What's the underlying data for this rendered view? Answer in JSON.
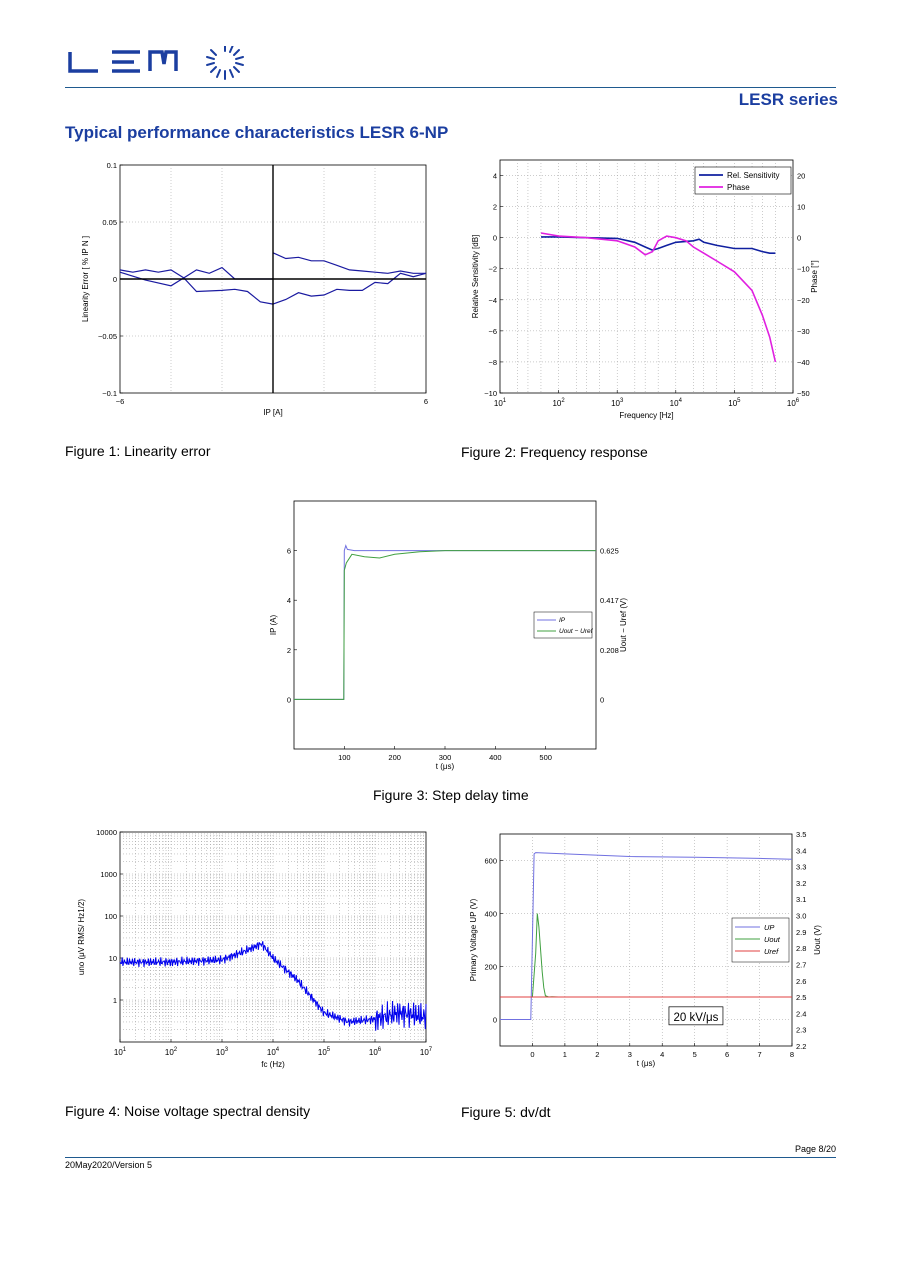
{
  "header": {
    "brand": "LEM",
    "series_title": "LESR series",
    "section_title": "Typical performance characteristics LESR 6-NP"
  },
  "colors": {
    "brand_blue": "#1b3ea0",
    "rule": "#1f5a8f"
  },
  "figures": {
    "fig1_caption": "Figure 1: Linearity error",
    "fig2_caption": "Figure 2: Frequency response",
    "fig3_caption": "Figure 3: Step delay time",
    "fig4_caption": "Figure 4: Noise voltage spectral density",
    "fig5_caption": "Figure 5: dv/dt"
  },
  "footer": {
    "page": "Page 8/20",
    "version": "20May2020/Version 5"
  },
  "chart_data": [
    {
      "type": "line",
      "ylabel": "Linearity Error [ % IP N ]",
      "xlabel": "IP [A]",
      "xlim": [
        -6,
        6
      ],
      "ylim": [
        -0.1,
        0.1
      ],
      "x_ticks": [
        "−6",
        "6"
      ],
      "y_ticks": [
        "0.1",
        "0.05",
        "0",
        "−0.05",
        "−0.1"
      ],
      "grid": true,
      "series": [
        {
          "x": [
            -6,
            -5.5,
            -5,
            -4.5,
            -4,
            -3.5,
            -3,
            -2.5,
            -2,
            -1.5,
            -1,
            -0.5,
            0
          ],
          "y": [
            0.008,
            0.006,
            0.008,
            0.006,
            0.008,
            0.001,
            0.008,
            0.005,
            0.01,
            0,
            0,
            0,
            0
          ]
        },
        {
          "x": [
            -6,
            -5,
            -4,
            -3.5,
            -3,
            -2,
            -1.5,
            -1,
            -0.5,
            0
          ],
          "y": [
            0.006,
            -0.001,
            -0.006,
            0.001,
            -0.011,
            -0.01,
            -0.009,
            -0.011,
            -0.02,
            -0.022
          ]
        },
        {
          "x": [
            0,
            0.5,
            1,
            1.5,
            2,
            2.5,
            3,
            3.5,
            4,
            4.5,
            5,
            5.5,
            6
          ],
          "y": [
            0.023,
            0.018,
            0.019,
            0.016,
            0.016,
            0.012,
            0.008,
            0.007,
            0.006,
            0.005,
            0.007,
            0.005,
            0.005
          ]
        },
        {
          "x": [
            0,
            0.5,
            1,
            1.5,
            2,
            2.5,
            3,
            3.5,
            4,
            4.5,
            5,
            5.5,
            6
          ],
          "y": [
            -0.022,
            -0.018,
            -0.012,
            -0.015,
            -0.014,
            -0.009,
            -0.01,
            -0.01,
            -0.003,
            -0.004,
            0.005,
            0.002,
            0.005
          ]
        }
      ]
    },
    {
      "type": "line",
      "xlabel": "Frequency [Hz]",
      "ylabel": "Relative Sensitivity [dB]",
      "ylabel_right": "Phase [°]",
      "xscale": "log",
      "xlim": [
        10,
        1000000
      ],
      "ylim": [
        -10,
        5
      ],
      "ylim_right": [
        -50,
        25
      ],
      "x_ticks": [
        "10^1",
        "10^2",
        "10^3",
        "10^4",
        "10^5",
        "10^6"
      ],
      "y_ticks": [
        "4",
        "2",
        "0",
        "−2",
        "−4",
        "−6",
        "−8",
        "−10"
      ],
      "y_ticks_right": [
        "20",
        "10",
        "0",
        "−10",
        "−20",
        "−30",
        "−40",
        "−50"
      ],
      "legend_position": "top-right",
      "grid": true,
      "series": [
        {
          "name": "Rel. Sensitivity",
          "color": "#1020a0",
          "x": [
            50,
            100,
            300,
            1000,
            2000,
            3000,
            4000,
            5000,
            7000,
            10000,
            20000,
            25000,
            30000,
            50000,
            100000,
            200000,
            300000,
            400000,
            500000
          ],
          "y": [
            0.05,
            0.05,
            0.0,
            -0.05,
            -0.3,
            -0.6,
            -0.8,
            -0.7,
            -0.5,
            -0.3,
            -0.2,
            -0.1,
            -0.3,
            -0.5,
            -0.7,
            -0.7,
            -0.9,
            -1.0,
            -1.0
          ]
        },
        {
          "name": "Phase",
          "color": "#e020e0",
          "x": [
            50,
            100,
            300,
            1000,
            2000,
            3000,
            4000,
            5000,
            7000,
            10000,
            15000,
            20000,
            30000,
            50000,
            100000,
            200000,
            300000,
            400000,
            500000
          ],
          "y": [
            1.5,
            0.5,
            0,
            -1,
            -3,
            -5.5,
            -4.5,
            -1,
            0.5,
            0,
            -1,
            -3,
            -5,
            -7.5,
            -11,
            -17,
            -25,
            -32,
            -40
          ]
        }
      ]
    },
    {
      "type": "line",
      "xlabel": "t (μs)",
      "ylabel": "IP (A)",
      "ylabel_right": "Uout − Uref (V)",
      "xlim": [
        0,
        600
      ],
      "ylim": [
        -2,
        8
      ],
      "x_ticks": [
        "100",
        "200",
        "300",
        "400",
        "500"
      ],
      "y_ticks": [
        "6",
        "4",
        "2",
        "0"
      ],
      "y_ticks_right": [
        "0.625",
        "0.417",
        "0.208",
        "0"
      ],
      "legend_position": "right",
      "series": [
        {
          "name": "IP",
          "color": "#7070e0",
          "x": [
            0,
            99,
            100,
            103,
            106,
            120,
            200,
            300,
            400,
            500,
            600
          ],
          "y": [
            0,
            0,
            6,
            6.2,
            6.05,
            6,
            6,
            6,
            6,
            6,
            6
          ]
        },
        {
          "name": "Uout − Uref",
          "color": "#40a040",
          "x": [
            0,
            99,
            100,
            104,
            115,
            140,
            170,
            200,
            250,
            300,
            400,
            500,
            600
          ],
          "y": [
            0,
            0,
            5.2,
            5.5,
            5.85,
            5.75,
            5.7,
            5.85,
            5.95,
            6,
            6,
            6,
            6
          ]
        }
      ]
    },
    {
      "type": "line",
      "xlabel": "fc (Hz)",
      "ylabel": "uno (μV RMS/ Hz1/2)",
      "xscale": "log",
      "yscale": "log",
      "xlim": [
        10,
        10000000
      ],
      "ylim": [
        0.1,
        10000
      ],
      "x_ticks": [
        "10^1",
        "10^2",
        "10^3",
        "10^4",
        "10^5",
        "10^6",
        "10^7"
      ],
      "y_ticks": [
        "10000",
        "1000",
        "100",
        "10",
        "1"
      ],
      "grid": true,
      "series": [
        {
          "color": "#0000ee",
          "x": [
            10,
            100,
            1000,
            3000,
            6000,
            10000,
            30000,
            100000,
            300000,
            1000000,
            3000000,
            10000000
          ],
          "y": [
            8,
            8,
            9,
            15,
            22,
            10,
            3,
            0.5,
            0.3,
            0.35,
            0.5,
            0.4
          ]
        }
      ]
    },
    {
      "type": "line",
      "xlabel": "t (μs)",
      "ylabel": "Primary Voltage UP (V)",
      "ylabel_right": "Uout (V)",
      "xlim": [
        -1,
        8
      ],
      "ylim": [
        -100,
        700
      ],
      "ylim_right": [
        2.2,
        3.5
      ],
      "x_ticks": [
        "0",
        "1",
        "2",
        "3",
        "4",
        "5",
        "6",
        "7",
        "8"
      ],
      "y_ticks": [
        "600",
        "400",
        "200",
        "0"
      ],
      "y_ticks_right": [
        "3.5",
        "3.4",
        "3.3",
        "3.2",
        "3.1",
        "3.0",
        "2.9",
        "2.8",
        "2.7",
        "2.6",
        "2.5",
        "2.4",
        "2.3",
        "2.2"
      ],
      "annotation": "20 kV/μs",
      "legend_position": "right",
      "grid": true,
      "series": [
        {
          "name": "UP",
          "color": "#7070e0",
          "x": [
            -1,
            -0.05,
            0,
            0.05,
            0.1,
            1,
            3,
            5,
            7,
            8
          ],
          "y": [
            0,
            0,
            300,
            625,
            630,
            625,
            615,
            612,
            608,
            605
          ]
        },
        {
          "name": "Uout",
          "color": "#40a040",
          "x": [
            -1,
            0,
            0.1,
            0.15,
            0.2,
            0.3,
            0.35,
            0.4,
            0.5,
            0.6,
            0.8,
            1,
            8
          ],
          "y": [
            85,
            85,
            250,
            400,
            350,
            180,
            120,
            90,
            85,
            86,
            85,
            85,
            85
          ]
        },
        {
          "name": "Uref",
          "color": "#e04040",
          "x": [
            -1,
            8
          ],
          "y": [
            85,
            85
          ]
        }
      ]
    }
  ]
}
